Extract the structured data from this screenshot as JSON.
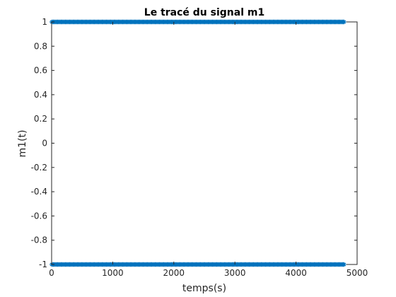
{
  "chart_data": {
    "type": "scatter",
    "title": "Le tracé du signal m1",
    "xlabel": "temps(s)",
    "ylabel": "m1(t)",
    "xlim": [
      0,
      5000
    ],
    "ylim": [
      -1,
      1
    ],
    "xticks": [
      0,
      1000,
      2000,
      3000,
      4000,
      5000
    ],
    "yticks": [
      1,
      0.8,
      0.6,
      0.4,
      0.2,
      0,
      -0.2,
      -0.4,
      -0.6,
      -0.8,
      -1
    ],
    "xtick_labels": [
      "0",
      "1000",
      "2000",
      "3000",
      "4000",
      "5000"
    ],
    "ytick_labels": [
      "1",
      "0.8",
      "0.6",
      "0.4",
      "0.2",
      "0",
      "-0.2",
      "-0.4",
      "-0.6",
      "-0.8",
      "-1"
    ],
    "marker": "*",
    "color": "#0072BD",
    "grid": false,
    "series": [
      {
        "x_start": 1,
        "x_end": 4800,
        "levels": [
          -1,
          1
        ],
        "clusters": [
          [
            60,
            140
          ],
          [
            180,
            260
          ],
          [
            300,
            420
          ],
          [
            480,
            560
          ],
          [
            600,
            700
          ],
          [
            760,
            900
          ],
          [
            960,
            1040
          ],
          [
            1100,
            1220
          ],
          [
            1280,
            1400
          ],
          [
            1460,
            1520
          ],
          [
            1580,
            1700
          ],
          [
            1760,
            1860
          ],
          [
            1920,
            2040
          ],
          [
            2100,
            2200
          ],
          [
            2260,
            2380
          ],
          [
            2440,
            2520
          ],
          [
            2600,
            2700
          ],
          [
            2760,
            2880
          ],
          [
            2940,
            3060
          ],
          [
            3120,
            3220
          ],
          [
            3300,
            3380
          ],
          [
            3460,
            3580
          ],
          [
            3640,
            3720
          ],
          [
            3780,
            3900
          ],
          [
            3960,
            4060
          ],
          [
            4120,
            4240
          ],
          [
            4300,
            4380
          ],
          [
            4440,
            4560
          ],
          [
            4620,
            4720
          ]
        ]
      }
    ]
  }
}
